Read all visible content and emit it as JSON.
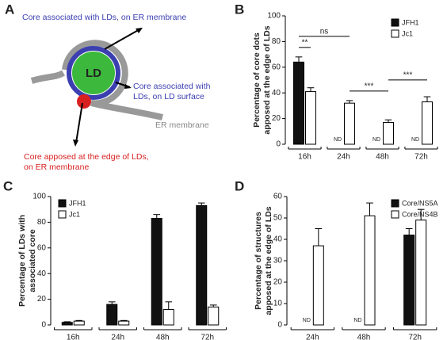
{
  "diagram": {
    "panel": "A",
    "er_core": "Core associated with LDs, on ER membrane",
    "ld": "LD",
    "ld_core": [
      "Core associated with",
      "LDs, on LD surface"
    ],
    "er": "ER membrane",
    "apposed": [
      "Core apposed at the edge of LDs,",
      "on ER membrane"
    ]
  },
  "chart_data": [
    {
      "type": "bar",
      "panel": "B",
      "ylabel": [
        "Percentage of core dots",
        "apposed at the edge of LDs"
      ],
      "categories": [
        "16h",
        "24h",
        "48h",
        "72h"
      ],
      "series": [
        {
          "name": "JFH1",
          "color": "#111111",
          "values": [
            64,
            null,
            null,
            null
          ],
          "errors": [
            4,
            null,
            null,
            null
          ],
          "value_labels": [
            null,
            "ND",
            "ND",
            "ND"
          ]
        },
        {
          "name": "Jc1",
          "color": "#ffffff",
          "values": [
            41,
            32,
            17,
            33
          ],
          "errors": [
            3,
            2,
            2,
            4
          ]
        }
      ],
      "annotations": [
        {
          "text": "**",
          "from": [
            0,
            0
          ],
          "to": [
            1,
            0
          ]
        },
        {
          "text": "ns",
          "from": [
            0,
            0
          ],
          "to": [
            1,
            1
          ]
        },
        {
          "text": "***",
          "from": [
            1,
            1
          ],
          "to": [
            1,
            2
          ]
        },
        {
          "text": "***",
          "from": [
            1,
            2
          ],
          "to": [
            1,
            3
          ]
        }
      ],
      "ylim": [
        0,
        100
      ],
      "yticks": [
        0,
        20,
        40,
        60,
        80,
        100
      ],
      "legend": "upper right"
    },
    {
      "type": "bar",
      "panel": "C",
      "ylabel": [
        "Percentage of LDs with",
        "associated core"
      ],
      "categories": [
        "16h",
        "24h",
        "48h",
        "72h"
      ],
      "series": [
        {
          "name": "JFH1",
          "color": "#111111",
          "values": [
            2,
            16,
            83,
            93
          ],
          "errors": [
            0.5,
            2,
            3,
            2
          ]
        },
        {
          "name": "Jc1",
          "color": "#ffffff",
          "values": [
            3,
            3,
            12,
            14
          ],
          "errors": [
            0.5,
            0.5,
            6,
            1.5
          ]
        }
      ],
      "ylim": [
        0,
        100
      ],
      "yticks": [
        0,
        20,
        40,
        60,
        80,
        100
      ],
      "legend": "upper left"
    },
    {
      "type": "bar",
      "panel": "D",
      "ylabel": [
        "Percentage of structures",
        "apposed at the edge of LDs"
      ],
      "categories": [
        "24h",
        "48h",
        "72h"
      ],
      "series": [
        {
          "name": "Core/NS5A",
          "color": "#111111",
          "values": [
            null,
            null,
            42
          ],
          "errors": [
            null,
            null,
            3
          ],
          "value_labels": [
            "ND",
            "ND",
            null
          ]
        },
        {
          "name": "Core/NS4B",
          "color": "#ffffff",
          "values": [
            37,
            51,
            49
          ],
          "errors": [
            8,
            6,
            5
          ]
        }
      ],
      "ylim": [
        0,
        60
      ],
      "yticks": [
        0,
        10,
        20,
        30,
        40,
        50,
        60
      ],
      "legend": "upper right"
    }
  ]
}
